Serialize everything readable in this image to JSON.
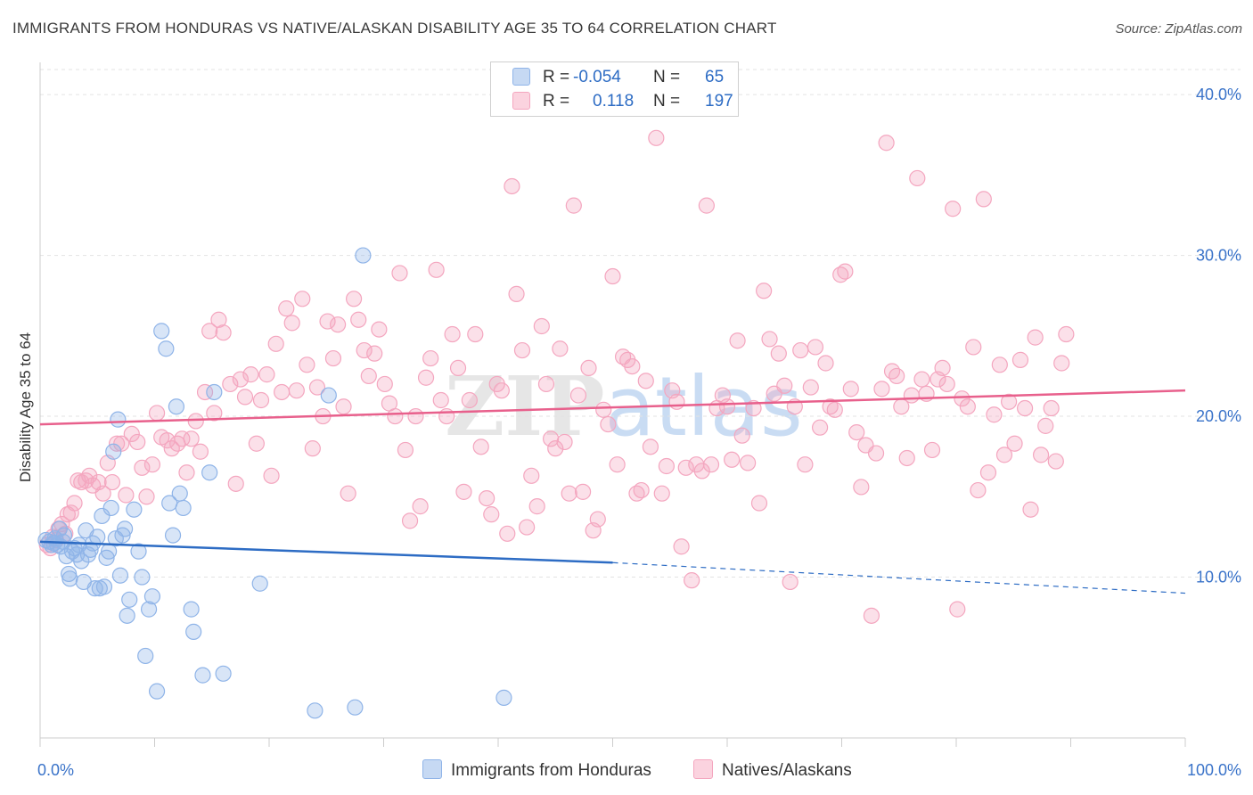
{
  "title": "IMMIGRANTS FROM HONDURAS VS NATIVE/ALASKAN DISABILITY AGE 35 TO 64 CORRELATION CHART",
  "source": "Source: ZipAtlas.com",
  "watermark": "ZIPatlas",
  "legend": {
    "rows": [
      {
        "r_label": "R =",
        "r_value": "-0.054",
        "n_label": "N =",
        "n_value": "65"
      },
      {
        "r_label": "R =",
        "r_value": "0.118",
        "n_label": "N =",
        "n_value": "197"
      }
    ]
  },
  "chart_data": {
    "type": "scatter",
    "title": "IMMIGRANTS FROM HONDURAS VS NATIVE/ALASKAN DISABILITY AGE 35 TO 64 CORRELATION CHART",
    "xlabel": "",
    "ylabel": "Disability Age 35 to 64",
    "xlim": [
      0,
      100
    ],
    "ylim": [
      0,
      42
    ],
    "x_tick_labels": [
      "0.0%",
      "100.0%"
    ],
    "y_ticks": [
      10,
      20,
      30,
      40
    ],
    "y_tick_labels": [
      "10.0%",
      "20.0%",
      "30.0%",
      "40.0%"
    ],
    "grid": true,
    "legend_position": "top-center",
    "series": [
      {
        "name": "Immigrants from Honduras",
        "color": "#8fb4e8",
        "line_color": "#2d6cc4",
        "R": -0.054,
        "N": 65,
        "trend": {
          "x0": 0,
          "y0": 12.2,
          "x1": 50,
          "y1": 10.9,
          "x_dashed_end": 100,
          "y_dashed_end": 9.0
        },
        "points": [
          [
            0.5,
            12.3
          ],
          [
            0.8,
            12.2
          ],
          [
            1.0,
            12.0
          ],
          [
            1.2,
            12.1
          ],
          [
            1.3,
            12.4
          ],
          [
            1.5,
            12.0
          ],
          [
            1.7,
            13.0
          ],
          [
            1.8,
            11.9
          ],
          [
            2.0,
            12.2
          ],
          [
            2.1,
            12.6
          ],
          [
            2.3,
            11.3
          ],
          [
            2.5,
            10.2
          ],
          [
            2.6,
            9.9
          ],
          [
            2.8,
            11.6
          ],
          [
            3.0,
            11.8
          ],
          [
            3.2,
            11.4
          ],
          [
            3.4,
            12.0
          ],
          [
            3.6,
            11.0
          ],
          [
            3.8,
            9.7
          ],
          [
            4.0,
            12.9
          ],
          [
            4.2,
            11.4
          ],
          [
            4.4,
            11.7
          ],
          [
            4.6,
            12.1
          ],
          [
            4.8,
            9.3
          ],
          [
            5.0,
            12.5
          ],
          [
            5.2,
            9.3
          ],
          [
            5.4,
            13.8
          ],
          [
            5.6,
            9.4
          ],
          [
            5.8,
            11.2
          ],
          [
            6.0,
            11.6
          ],
          [
            6.2,
            14.3
          ],
          [
            6.4,
            17.8
          ],
          [
            6.6,
            12.4
          ],
          [
            6.8,
            19.8
          ],
          [
            7.0,
            10.1
          ],
          [
            7.2,
            12.6
          ],
          [
            7.4,
            13.0
          ],
          [
            7.6,
            7.6
          ],
          [
            7.8,
            8.6
          ],
          [
            8.2,
            14.2
          ],
          [
            8.6,
            11.6
          ],
          [
            8.9,
            10.0
          ],
          [
            9.2,
            5.1
          ],
          [
            9.5,
            8.0
          ],
          [
            9.8,
            8.8
          ],
          [
            10.2,
            2.9
          ],
          [
            10.6,
            25.3
          ],
          [
            11.0,
            24.2
          ],
          [
            11.3,
            14.6
          ],
          [
            11.6,
            12.6
          ],
          [
            11.9,
            20.6
          ],
          [
            12.2,
            15.2
          ],
          [
            12.5,
            14.3
          ],
          [
            13.2,
            8.0
          ],
          [
            13.4,
            6.6
          ],
          [
            14.2,
            3.9
          ],
          [
            14.8,
            16.5
          ],
          [
            15.2,
            21.5
          ],
          [
            16.0,
            4.0
          ],
          [
            19.2,
            9.6
          ],
          [
            24.0,
            1.7
          ],
          [
            25.2,
            21.3
          ],
          [
            27.5,
            1.9
          ],
          [
            28.2,
            30.0
          ],
          [
            40.5,
            2.5
          ]
        ]
      },
      {
        "name": "Natives/Alaskans",
        "color": "#f4a6bf",
        "line_color": "#e8608c",
        "R": 0.118,
        "N": 197,
        "trend": {
          "x0": 0,
          "y0": 19.5,
          "x1": 100,
          "y1": 21.6
        },
        "points": [
          [
            0.6,
            12.0
          ],
          [
            0.9,
            11.8
          ],
          [
            1.1,
            12.5
          ],
          [
            1.4,
            12.3
          ],
          [
            1.6,
            13.0
          ],
          [
            1.9,
            13.3
          ],
          [
            2.2,
            12.7
          ],
          [
            2.4,
            13.9
          ],
          [
            2.7,
            14.0
          ],
          [
            3.0,
            14.6
          ],
          [
            3.3,
            16.0
          ],
          [
            3.6,
            15.9
          ],
          [
            4.0,
            16.0
          ],
          [
            4.3,
            16.3
          ],
          [
            4.6,
            15.7
          ],
          [
            5.1,
            15.9
          ],
          [
            5.5,
            15.2
          ],
          [
            5.9,
            17.1
          ],
          [
            6.3,
            15.9
          ],
          [
            6.7,
            18.3
          ],
          [
            7.1,
            18.3
          ],
          [
            7.5,
            15.1
          ],
          [
            8.0,
            18.9
          ],
          [
            8.5,
            18.4
          ],
          [
            8.9,
            16.8
          ],
          [
            9.3,
            15.0
          ],
          [
            9.8,
            17.0
          ],
          [
            10.2,
            20.2
          ],
          [
            10.6,
            18.7
          ],
          [
            11.1,
            18.5
          ],
          [
            11.5,
            18.0
          ],
          [
            12.0,
            18.3
          ],
          [
            12.4,
            18.6
          ],
          [
            12.8,
            16.5
          ],
          [
            13.2,
            18.6
          ],
          [
            13.6,
            19.7
          ],
          [
            14.0,
            17.8
          ],
          [
            14.4,
            21.5
          ],
          [
            14.8,
            25.3
          ],
          [
            15.2,
            20.2
          ],
          [
            15.6,
            26.0
          ],
          [
            16.0,
            25.2
          ],
          [
            16.6,
            22.0
          ],
          [
            17.1,
            15.8
          ],
          [
            17.5,
            22.3
          ],
          [
            17.9,
            21.2
          ],
          [
            18.4,
            22.6
          ],
          [
            18.9,
            18.3
          ],
          [
            19.3,
            21.0
          ],
          [
            19.8,
            22.6
          ],
          [
            20.2,
            16.3
          ],
          [
            20.6,
            24.5
          ],
          [
            21.1,
            21.5
          ],
          [
            21.5,
            26.7
          ],
          [
            22.0,
            25.8
          ],
          [
            22.4,
            21.6
          ],
          [
            22.9,
            27.3
          ],
          [
            23.3,
            23.2
          ],
          [
            23.8,
            18.0
          ],
          [
            24.2,
            21.8
          ],
          [
            24.7,
            20.0
          ],
          [
            25.1,
            25.9
          ],
          [
            25.6,
            23.6
          ],
          [
            26.0,
            25.7
          ],
          [
            26.5,
            20.6
          ],
          [
            26.9,
            15.2
          ],
          [
            27.4,
            27.3
          ],
          [
            27.8,
            26.0
          ],
          [
            28.3,
            24.1
          ],
          [
            28.7,
            22.5
          ],
          [
            29.2,
            23.9
          ],
          [
            29.6,
            25.4
          ],
          [
            30.1,
            22.0
          ],
          [
            30.5,
            20.8
          ],
          [
            31.0,
            20.0
          ],
          [
            31.4,
            28.9
          ],
          [
            31.9,
            17.9
          ],
          [
            32.3,
            13.5
          ],
          [
            32.8,
            20.0
          ],
          [
            33.2,
            14.4
          ],
          [
            33.7,
            22.4
          ],
          [
            34.1,
            23.6
          ],
          [
            34.6,
            29.1
          ],
          [
            35.0,
            21.0
          ],
          [
            35.5,
            20.0
          ],
          [
            36.0,
            25.1
          ],
          [
            36.5,
            23.0
          ],
          [
            37.0,
            15.3
          ],
          [
            37.5,
            21.0
          ],
          [
            38.0,
            25.1
          ],
          [
            38.5,
            18.1
          ],
          [
            39.0,
            14.9
          ],
          [
            39.4,
            13.9
          ],
          [
            39.9,
            22.0
          ],
          [
            40.3,
            21.6
          ],
          [
            40.8,
            12.7
          ],
          [
            41.2,
            34.3
          ],
          [
            41.6,
            27.6
          ],
          [
            42.1,
            24.1
          ],
          [
            42.5,
            13.1
          ],
          [
            42.9,
            16.3
          ],
          [
            43.4,
            14.4
          ],
          [
            43.8,
            25.6
          ],
          [
            44.2,
            22.0
          ],
          [
            44.6,
            18.6
          ],
          [
            45.0,
            18.0
          ],
          [
            45.4,
            24.2
          ],
          [
            45.8,
            18.4
          ],
          [
            46.2,
            15.2
          ],
          [
            46.6,
            33.1
          ],
          [
            47.0,
            21.3
          ],
          [
            47.4,
            15.3
          ],
          [
            47.9,
            23.0
          ],
          [
            48.3,
            12.9
          ],
          [
            48.7,
            13.6
          ],
          [
            49.2,
            20.4
          ],
          [
            49.6,
            19.5
          ],
          [
            50.0,
            28.7
          ],
          [
            50.4,
            17.0
          ],
          [
            50.9,
            23.7
          ],
          [
            51.3,
            23.5
          ],
          [
            51.7,
            23.1
          ],
          [
            52.1,
            15.2
          ],
          [
            52.5,
            15.4
          ],
          [
            52.9,
            22.2
          ],
          [
            53.3,
            18.1
          ],
          [
            53.8,
            37.3
          ],
          [
            54.3,
            15.2
          ],
          [
            54.7,
            16.9
          ],
          [
            55.2,
            21.6
          ],
          [
            55.6,
            20.9
          ],
          [
            56.0,
            11.9
          ],
          [
            56.4,
            16.8
          ],
          [
            56.9,
            9.8
          ],
          [
            57.3,
            17.0
          ],
          [
            57.8,
            16.6
          ],
          [
            58.2,
            33.1
          ],
          [
            58.6,
            17.0
          ],
          [
            59.1,
            20.5
          ],
          [
            59.6,
            21.3
          ],
          [
            60.0,
            20.6
          ],
          [
            60.4,
            17.3
          ],
          [
            60.9,
            24.7
          ],
          [
            61.3,
            18.8
          ],
          [
            61.8,
            17.1
          ],
          [
            62.3,
            20.5
          ],
          [
            62.8,
            14.6
          ],
          [
            63.2,
            27.8
          ],
          [
            63.7,
            24.8
          ],
          [
            64.1,
            21.4
          ],
          [
            64.5,
            23.9
          ],
          [
            65.0,
            21.9
          ],
          [
            65.5,
            9.7
          ],
          [
            65.9,
            20.6
          ],
          [
            66.4,
            24.1
          ],
          [
            66.8,
            17.0
          ],
          [
            67.3,
            21.8
          ],
          [
            67.7,
            24.3
          ],
          [
            68.1,
            19.3
          ],
          [
            68.6,
            23.3
          ],
          [
            69.0,
            20.6
          ],
          [
            69.4,
            20.4
          ],
          [
            69.9,
            28.8
          ],
          [
            70.3,
            29.0
          ],
          [
            70.8,
            21.7
          ],
          [
            71.3,
            19.0
          ],
          [
            71.7,
            15.6
          ],
          [
            72.1,
            18.2
          ],
          [
            72.6,
            7.6
          ],
          [
            73.0,
            17.7
          ],
          [
            73.5,
            21.7
          ],
          [
            73.9,
            37.0
          ],
          [
            74.4,
            22.8
          ],
          [
            74.8,
            22.5
          ],
          [
            75.2,
            20.6
          ],
          [
            75.7,
            17.4
          ],
          [
            76.1,
            21.3
          ],
          [
            76.6,
            34.8
          ],
          [
            77.0,
            22.3
          ],
          [
            77.4,
            21.4
          ],
          [
            77.9,
            17.9
          ],
          [
            78.4,
            22.3
          ],
          [
            78.8,
            23.0
          ],
          [
            79.2,
            22.0
          ],
          [
            79.7,
            32.9
          ],
          [
            80.1,
            8.0
          ],
          [
            80.5,
            21.1
          ],
          [
            81.0,
            20.6
          ],
          [
            81.5,
            24.3
          ],
          [
            81.9,
            15.4
          ],
          [
            82.4,
            33.5
          ],
          [
            82.8,
            16.5
          ],
          [
            83.3,
            20.1
          ],
          [
            83.8,
            23.2
          ],
          [
            84.2,
            17.6
          ],
          [
            84.6,
            20.9
          ],
          [
            85.1,
            18.3
          ],
          [
            85.6,
            23.5
          ],
          [
            86.0,
            20.5
          ],
          [
            86.5,
            14.2
          ],
          [
            86.9,
            24.9
          ],
          [
            87.4,
            17.6
          ],
          [
            87.8,
            19.4
          ],
          [
            88.3,
            20.5
          ],
          [
            88.7,
            17.2
          ],
          [
            89.2,
            23.3
          ],
          [
            89.6,
            25.1
          ]
        ]
      }
    ]
  },
  "bottom_legend": [
    {
      "label": "Immigrants from Honduras"
    },
    {
      "label": "Natives/Alaskans"
    }
  ]
}
